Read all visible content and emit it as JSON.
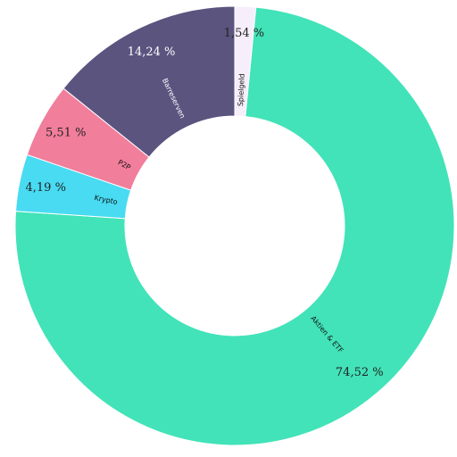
{
  "chart_data": {
    "type": "pie",
    "donut": true,
    "legend": "none",
    "slices": [
      {
        "label": "Spielgeld",
        "value": 1.54,
        "value_label": "1,54 %",
        "color": "#f6eefb",
        "pct_color": "#222222",
        "cat_color": "#111111"
      },
      {
        "label": "Aktien & ETF",
        "value": 74.52,
        "value_label": "74,52 %",
        "color": "#42e3b8",
        "pct_color": "#222222",
        "cat_color": "#111111"
      },
      {
        "label": "Krypto",
        "value": 4.19,
        "value_label": "4,19 %",
        "color": "#48dbf2",
        "pct_color": "#222222",
        "cat_color": "#111111"
      },
      {
        "label": "P2P",
        "value": 5.51,
        "value_label": "5,51 %",
        "color": "#f17e9b",
        "pct_color": "#222222",
        "cat_color": "#111111"
      },
      {
        "label": "Barreserven",
        "value": 14.24,
        "value_label": "14,24 %",
        "color": "#5a547f",
        "pct_color": "#ffffff",
        "cat_color": "#ffffff"
      }
    ]
  }
}
